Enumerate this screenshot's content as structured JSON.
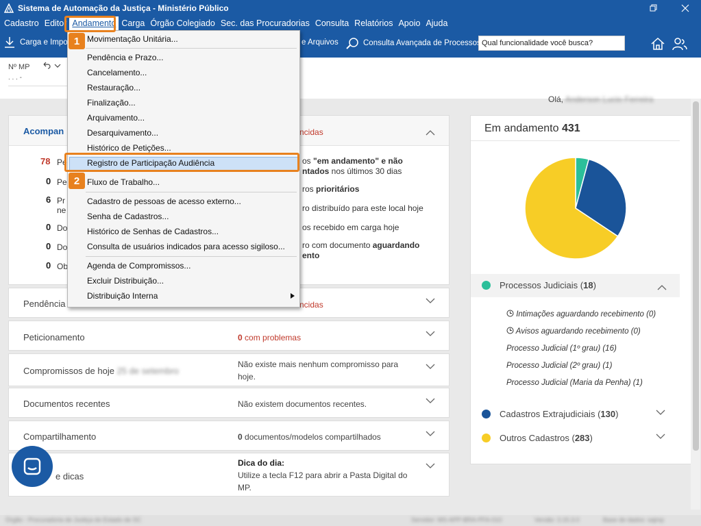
{
  "window": {
    "title": "Sistema de Automação da Justiça - Ministério Público"
  },
  "menubar": [
    "Cadastro",
    "Editor",
    "Andamento",
    "Carga",
    "Órgão Colegiado",
    "Sec. das Procuradorias",
    "Consulta",
    "Relatórios",
    "Apoio",
    "Ajuda"
  ],
  "toolbar": {
    "carga": "Carga e Impo",
    "arquivos": "e Arquivos",
    "consulta_avancada": "Consulta Avançada de Processos",
    "search_placeholder": "Qual funcionalidade você busca?"
  },
  "subbar": {
    "nmp_label": "Nº MP",
    "nmp_value": ". . . -",
    "greeting": "Olá,",
    "user_name": "Anderson Lucio Ferreira"
  },
  "dropdown": {
    "items": [
      "Movimentação Unitária...",
      "Pendência e Prazo...",
      "Cancelamento...",
      "Restauração...",
      "Finalização...",
      "Arquivamento...",
      "Desarquivamento...",
      "Histórico de Petições...",
      "Registro de Participação Audiência",
      "Fluxo de Trabalho...",
      "Cadastro de pessoas de acesso externo...",
      "Senha de Cadastros...",
      "Histórico de Senhas de Cadastros...",
      "Consulta de usuários indicados para acesso sigiloso...",
      "Agenda de Compromissos...",
      "Excluir Distribuição...",
      "Distribuição Interna"
    ]
  },
  "callouts": [
    "1",
    "2"
  ],
  "acompanhamento": {
    "title": "Acompan",
    "right_label": "ncidas",
    "stats": [
      {
        "num": "78",
        "left": "Pe",
        "right_pre": "os ",
        "right_bold": "\"em andamento\"",
        "right_post": " e não",
        "right2_bold": "ntados",
        "right2_post": " nos últimos 30 dias"
      },
      {
        "num": "0",
        "left": "Pe",
        "right_pre": "ros ",
        "right_bold": "prioritários"
      },
      {
        "num": "6",
        "left": "Pr",
        "left2": "ne",
        "right_pre": "ro distribuído para este local hoje"
      },
      {
        "num": "0",
        "left": "Do",
        "right_pre": "os recebido em carga hoje"
      },
      {
        "num": "0",
        "left": "Do",
        "right_pre": "ro com documento ",
        "right_bold": "aguardando",
        "right2_bold": "ento"
      },
      {
        "num": "0",
        "left": "Ob"
      }
    ]
  },
  "cards": [
    {
      "title": "Pendência",
      "right_prefix": "",
      "right": "ncidas"
    },
    {
      "title": "Peticionamento",
      "right_prefix": "0",
      "right": "com problemas"
    },
    {
      "title": "Compromissos de hoje",
      "title_blur": "25 de setembro",
      "right": "Não existe mais nenhum compromisso para",
      "right2": "hoje."
    },
    {
      "title": "Documentos recentes",
      "right": "Não existem documentos recentes."
    },
    {
      "title": "Compartilhamento",
      "right_prefix": "0",
      "right": "documentos/modelos compartilhados"
    },
    {
      "title": "e dicas",
      "right_bold": "Dica do dia:",
      "right": "Utilize a tecla F12 para abrir a Pasta Digital do",
      "right2": "MP."
    }
  ],
  "right_panel": {
    "title": "Em andamento",
    "total": "431",
    "groups": [
      {
        "name": "Processos Judiciais",
        "count": "18",
        "color": "#2bbf9a"
      },
      {
        "name": "Cadastros Extrajudiciais",
        "count": "130",
        "color": "#1a5499"
      },
      {
        "name": "Outros Cadastros",
        "count": "283",
        "color": "#f7cd26"
      }
    ],
    "sub_items": [
      "Intimações aguardando recebimento (0)",
      "Avisos aguardando recebimento (0)",
      "Processo Judicial (1º grau) (16)",
      "Processo Judicial (2º grau) (1)",
      "Processo Judicial (Maria da Penha) (1)"
    ]
  },
  "chart_data": {
    "type": "pie",
    "categories": [
      "Processos Judiciais",
      "Cadastros Extrajudiciais",
      "Outros Cadastros"
    ],
    "values": [
      18,
      130,
      283
    ],
    "colors": [
      "#2bbf9a",
      "#1a5499",
      "#f7cd26"
    ],
    "title": ""
  },
  "statusbar": {
    "left": "Órgão - Procuradoria de Justiça do Estado de SC",
    "mid": "Servidor: MS-APP-BRA-PFA-010",
    "right": "Versão: 3.15.3.0",
    "far": "Base de dados: sajmp"
  }
}
